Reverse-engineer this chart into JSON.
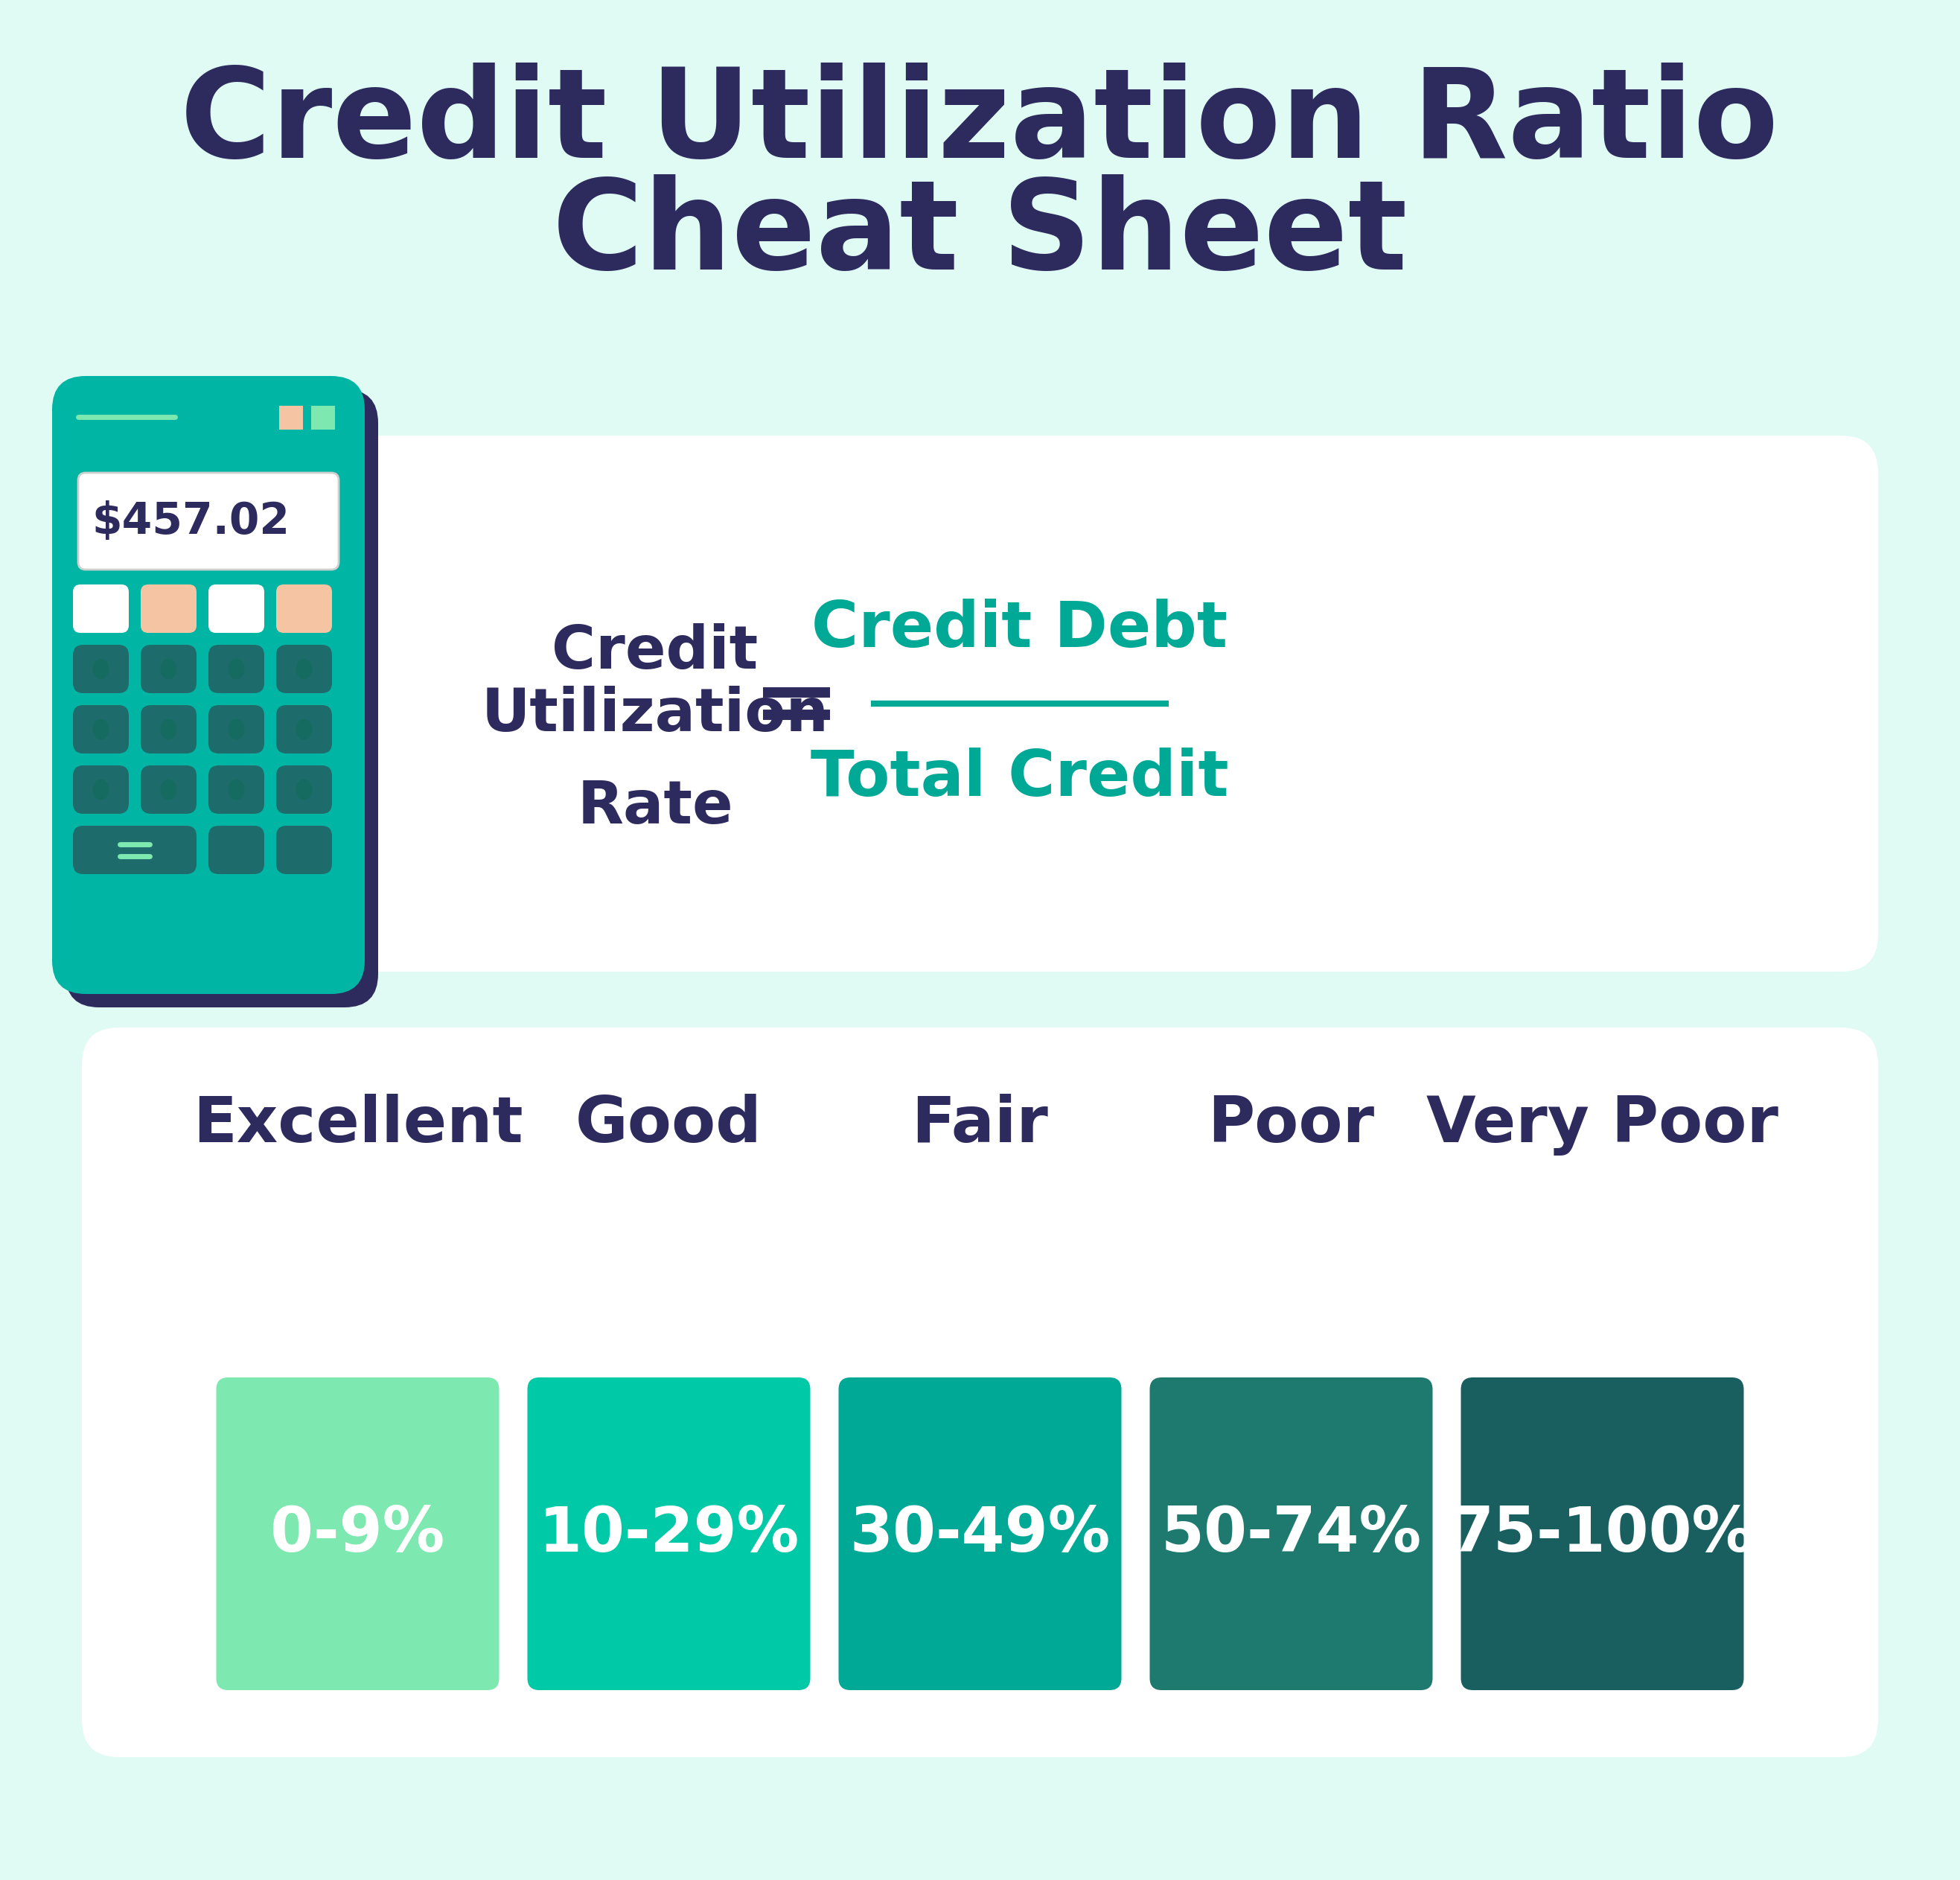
{
  "title_line1": "Credit Utilization Ratio",
  "title_line2": "Cheat Sheet",
  "title_color": "#2d2b5e",
  "background_color": "#e0faf4",
  "card_bg": "#ffffff",
  "formula_label_color": "#2d2b5e",
  "formula_fraction_color": "#00a896",
  "formula_numerator": "Credit Debt",
  "formula_denominator": "Total Credit",
  "calculator_display": "$457.02",
  "calc_body_color": "#00b5a3",
  "calc_dark_btn": "#1e6b6b",
  "calc_shadow_color": "#2d2b5e",
  "calc_btn_orange": "#f5c5a3",
  "calc_btn_white": "#ffffff",
  "calc_dot_color": "#156b60",
  "calc_accent_line": "#7de8b0",
  "categories": [
    "Excellent",
    "Good",
    "Fair",
    "Poor",
    "Very Poor"
  ],
  "ranges": [
    "0-9%",
    "10-29%",
    "30-49%",
    "50-74%",
    "75-100%"
  ],
  "cat_colors": [
    "#7de8b0",
    "#00c9a7",
    "#00a896",
    "#1e7a6e",
    "#1a5f5f"
  ],
  "cat_label_color": "#2d2b5e",
  "range_text_color": "#ffffff"
}
